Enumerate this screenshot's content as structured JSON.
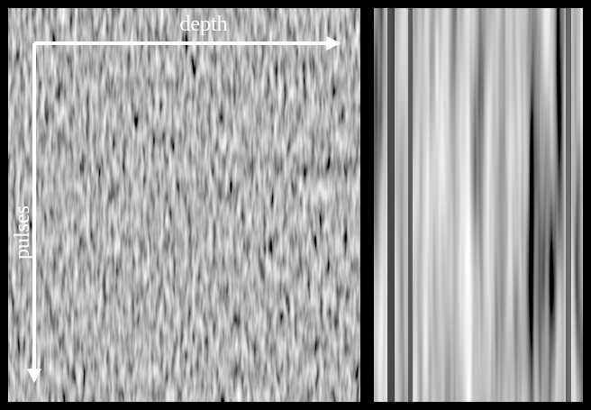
{
  "labels": {
    "horizontal": "depth",
    "vertical": "pulses"
  }
}
